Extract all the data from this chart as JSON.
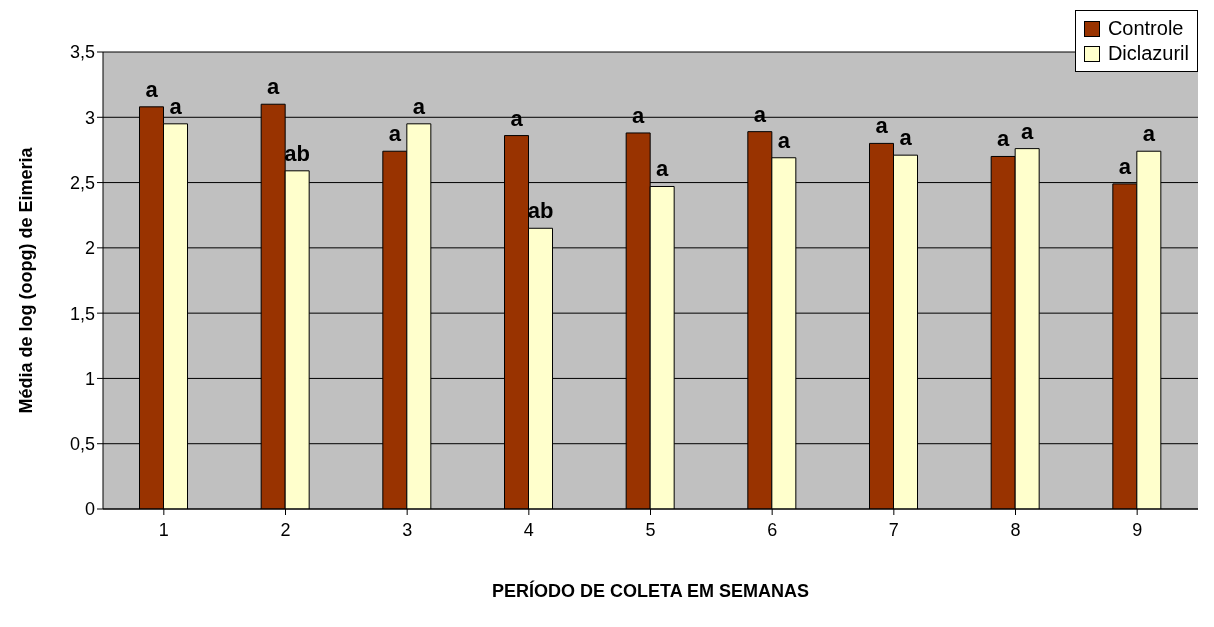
{
  "chart_data": {
    "type": "bar",
    "xlabel": "PERÍODO DE COLETA EM SEMANAS",
    "ylabel": "Média de log (oopg) de Eimeria",
    "categories": [
      "1",
      "2",
      "3",
      "4",
      "5",
      "6",
      "7",
      "8",
      "9"
    ],
    "series": [
      {
        "name": "Controle",
        "color": "#993300",
        "values": [
          3.08,
          3.1,
          2.74,
          2.86,
          2.88,
          2.89,
          2.8,
          2.7,
          2.49
        ],
        "value_labels": [
          "a",
          "a",
          "a",
          "a",
          "a",
          "a",
          "a",
          "a",
          "a"
        ]
      },
      {
        "name": "Diclazuril",
        "color": "#ffffcc",
        "values": [
          2.95,
          2.59,
          2.95,
          2.15,
          2.47,
          2.69,
          2.71,
          2.76,
          2.74
        ],
        "value_labels": [
          "a",
          "ab",
          "a",
          "ab",
          "a",
          "a",
          "a",
          "a",
          "a"
        ]
      }
    ],
    "ylim": [
      0,
      3.5
    ],
    "yticks": [
      0,
      {
        "value": 0.5,
        "label": "0,5"
      },
      1,
      {
        "value": 1.5,
        "label": "1,5"
      },
      2,
      {
        "value": 2.5,
        "label": "2,5"
      },
      3,
      {
        "value": 3.5,
        "label": "3,5"
      }
    ],
    "grid": "y",
    "legend": "top right"
  }
}
